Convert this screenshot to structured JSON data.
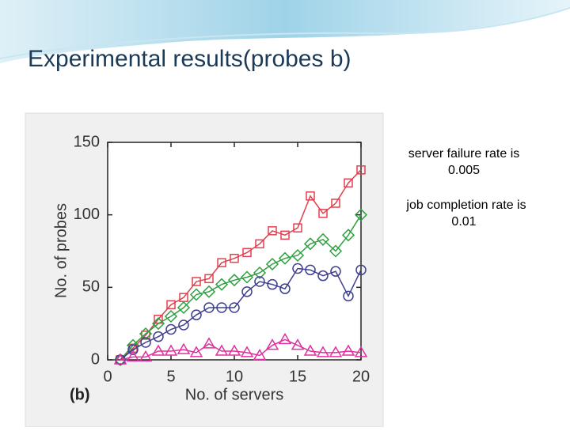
{
  "slide": {
    "title": "Experimental results(probes b)",
    "notes": [
      [
        "server failure rate is",
        "0.005"
      ],
      [
        "job completion rate is",
        "0.01"
      ]
    ]
  },
  "chart_data": {
    "type": "line",
    "panel_label": "(b)",
    "x_label": "No. of servers",
    "y_label": "No. of probes",
    "x": [
      1,
      2,
      3,
      4,
      5,
      6,
      7,
      8,
      9,
      10,
      11,
      12,
      13,
      14,
      15,
      16,
      17,
      18,
      19,
      20
    ],
    "xlim": [
      0,
      20
    ],
    "xticks": [
      0,
      5,
      10,
      15,
      20
    ],
    "ylim": [
      0,
      150
    ],
    "yticks": [
      0,
      50,
      100,
      150
    ],
    "series": [
      {
        "color": "#e0404f",
        "marker": "square",
        "values": [
          0,
          8,
          17,
          28,
          38,
          43,
          54,
          56,
          67,
          70,
          74,
          80,
          89,
          86,
          91,
          113,
          101,
          108,
          122,
          131
        ]
      },
      {
        "color": "#2fa040",
        "marker": "diamond",
        "values": [
          0,
          10,
          18,
          25,
          30,
          36,
          45,
          47,
          52,
          55,
          57,
          60,
          66,
          70,
          72,
          80,
          83,
          75,
          86,
          100
        ]
      },
      {
        "color": "#3f3f8f",
        "marker": "circle",
        "values": [
          0,
          7,
          12,
          16,
          21,
          24,
          31,
          36,
          36,
          36,
          47,
          54,
          52,
          49,
          63,
          62,
          58,
          61,
          44,
          62
        ]
      },
      {
        "color": "#e030a0",
        "marker": "triangle",
        "values": [
          0,
          2,
          2,
          6,
          6,
          7,
          5,
          11,
          6,
          6,
          5,
          3,
          10,
          14,
          10,
          6,
          5,
          5,
          6,
          5
        ]
      }
    ]
  }
}
